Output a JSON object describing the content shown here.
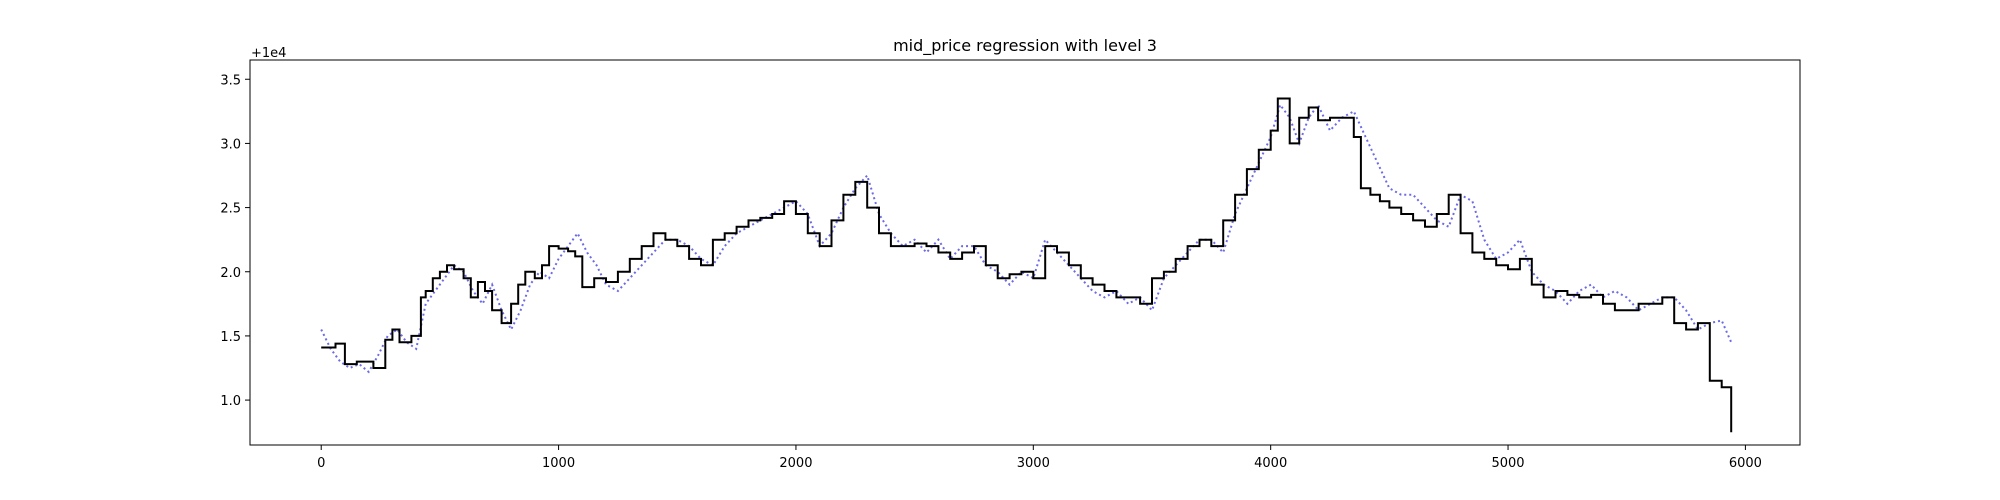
{
  "chart_data": {
    "type": "line",
    "title": "mid_price regression with level 3",
    "xlabel": "",
    "ylabel": "",
    "offset_label": "+1e4",
    "xlim": [
      -300,
      6230
    ],
    "ylim": [
      0.65,
      3.65
    ],
    "x_ticks": [
      0,
      1000,
      2000,
      3000,
      4000,
      5000,
      6000
    ],
    "x_tick_labels": [
      "0",
      "1000",
      "2000",
      "3000",
      "4000",
      "5000",
      "6000"
    ],
    "y_ticks": [
      1.0,
      1.5,
      2.0,
      2.5,
      3.0,
      3.5
    ],
    "y_tick_labels": [
      "1.0",
      "1.5",
      "2.0",
      "2.5",
      "3.0",
      "3.5"
    ],
    "grid": false,
    "colors": {
      "actual": "#000000",
      "predicted": "#6b6be8"
    },
    "series": [
      {
        "style": "solid",
        "color": "#000000",
        "x": [
          0,
          60,
          100,
          150,
          220,
          270,
          300,
          330,
          380,
          420,
          440,
          470,
          500,
          530,
          560,
          600,
          630,
          660,
          690,
          720,
          760,
          800,
          830,
          860,
          900,
          930,
          960,
          1000,
          1040,
          1070,
          1100,
          1150,
          1200,
          1250,
          1300,
          1350,
          1400,
          1450,
          1500,
          1550,
          1600,
          1650,
          1700,
          1750,
          1800,
          1850,
          1900,
          1950,
          2000,
          2050,
          2100,
          2150,
          2200,
          2250,
          2300,
          2350,
          2400,
          2450,
          2500,
          2550,
          2600,
          2650,
          2700,
          2750,
          2800,
          2850,
          2900,
          2950,
          3000,
          3050,
          3100,
          3150,
          3200,
          3250,
          3300,
          3350,
          3400,
          3450,
          3500,
          3550,
          3600,
          3650,
          3700,
          3750,
          3800,
          3850,
          3900,
          3950,
          4000,
          4030,
          4080,
          4120,
          4160,
          4200,
          4250,
          4300,
          4350,
          4380,
          4420,
          4460,
          4500,
          4550,
          4600,
          4650,
          4700,
          4750,
          4800,
          4850,
          4900,
          4950,
          5000,
          5050,
          5100,
          5150,
          5200,
          5250,
          5300,
          5350,
          5400,
          5450,
          5500,
          5550,
          5600,
          5650,
          5700,
          5750,
          5800,
          5850,
          5880,
          5900,
          5940
        ],
        "values": [
          1.41,
          1.44,
          1.28,
          1.3,
          1.25,
          1.47,
          1.55,
          1.45,
          1.5,
          1.8,
          1.85,
          1.95,
          2.0,
          2.05,
          2.02,
          1.95,
          1.8,
          1.92,
          1.85,
          1.7,
          1.6,
          1.75,
          1.9,
          2.0,
          1.95,
          2.05,
          2.2,
          2.18,
          2.16,
          2.12,
          1.88,
          1.95,
          1.92,
          2.0,
          2.1,
          2.2,
          2.3,
          2.25,
          2.2,
          2.1,
          2.05,
          2.25,
          2.3,
          2.35,
          2.4,
          2.42,
          2.45,
          2.55,
          2.45,
          2.3,
          2.2,
          2.4,
          2.6,
          2.7,
          2.5,
          2.3,
          2.2,
          2.2,
          2.22,
          2.2,
          2.15,
          2.1,
          2.15,
          2.2,
          2.05,
          1.95,
          1.98,
          2.0,
          1.95,
          2.2,
          2.15,
          2.05,
          1.95,
          1.9,
          1.85,
          1.8,
          1.8,
          1.75,
          1.95,
          2.0,
          2.1,
          2.2,
          2.25,
          2.2,
          2.4,
          2.6,
          2.8,
          2.95,
          3.1,
          3.35,
          3.0,
          3.2,
          3.28,
          3.18,
          3.2,
          3.2,
          3.05,
          2.65,
          2.6,
          2.55,
          2.5,
          2.45,
          2.4,
          2.35,
          2.45,
          2.6,
          2.3,
          2.15,
          2.1,
          2.05,
          2.02,
          2.1,
          1.9,
          1.8,
          1.85,
          1.82,
          1.8,
          1.82,
          1.75,
          1.7,
          1.7,
          1.75,
          1.75,
          1.8,
          1.6,
          1.55,
          1.6,
          1.15,
          1.15,
          1.1,
          0.75
        ]
      },
      {
        "style": "dotted",
        "color": "#6b6be8",
        "x": [
          0,
          40,
          80,
          120,
          160,
          200,
          240,
          280,
          320,
          360,
          400,
          440,
          480,
          520,
          560,
          600,
          640,
          680,
          720,
          760,
          800,
          840,
          880,
          920,
          960,
          1000,
          1040,
          1080,
          1120,
          1160,
          1200,
          1250,
          1300,
          1350,
          1400,
          1450,
          1500,
          1550,
          1600,
          1650,
          1700,
          1750,
          1800,
          1850,
          1900,
          1950,
          2000,
          2050,
          2100,
          2150,
          2200,
          2250,
          2300,
          2350,
          2400,
          2450,
          2500,
          2550,
          2600,
          2650,
          2700,
          2750,
          2800,
          2850,
          2900,
          2950,
          3000,
          3050,
          3100,
          3150,
          3200,
          3250,
          3300,
          3350,
          3400,
          3450,
          3500,
          3550,
          3600,
          3650,
          3700,
          3750,
          3800,
          3850,
          3900,
          3950,
          4000,
          4040,
          4080,
          4120,
          4160,
          4200,
          4250,
          4300,
          4350,
          4400,
          4450,
          4500,
          4550,
          4600,
          4650,
          4700,
          4750,
          4800,
          4850,
          4900,
          4950,
          5000,
          5050,
          5100,
          5150,
          5200,
          5250,
          5300,
          5350,
          5400,
          5450,
          5500,
          5550,
          5600,
          5650,
          5700,
          5750,
          5800,
          5850,
          5900,
          5940
        ],
        "values": [
          1.55,
          1.4,
          1.3,
          1.25,
          1.28,
          1.22,
          1.35,
          1.5,
          1.55,
          1.45,
          1.4,
          1.75,
          1.85,
          1.95,
          2.05,
          2.0,
          1.85,
          1.75,
          1.9,
          1.7,
          1.55,
          1.7,
          1.9,
          2.0,
          1.95,
          2.1,
          2.2,
          2.3,
          2.15,
          2.05,
          1.9,
          1.85,
          1.95,
          2.05,
          2.15,
          2.25,
          2.25,
          2.2,
          2.1,
          2.05,
          2.2,
          2.3,
          2.35,
          2.4,
          2.45,
          2.5,
          2.55,
          2.45,
          2.2,
          2.3,
          2.5,
          2.65,
          2.75,
          2.45,
          2.3,
          2.2,
          2.25,
          2.15,
          2.25,
          2.1,
          2.2,
          2.2,
          2.05,
          2.0,
          1.9,
          2.0,
          1.95,
          2.25,
          2.15,
          2.05,
          1.95,
          1.85,
          1.8,
          1.85,
          1.75,
          1.8,
          1.7,
          1.95,
          2.05,
          2.15,
          2.25,
          2.25,
          2.15,
          2.45,
          2.65,
          2.85,
          3.05,
          3.3,
          3.2,
          3.0,
          3.2,
          3.3,
          3.1,
          3.2,
          3.25,
          3.05,
          2.85,
          2.65,
          2.6,
          2.6,
          2.5,
          2.4,
          2.35,
          2.6,
          2.55,
          2.25,
          2.1,
          2.15,
          2.25,
          2.0,
          1.9,
          1.85,
          1.75,
          1.85,
          1.9,
          1.8,
          1.85,
          1.8,
          1.7,
          1.75,
          1.8,
          1.8,
          1.7,
          1.55,
          1.6,
          1.62,
          1.45
        ]
      }
    ]
  }
}
